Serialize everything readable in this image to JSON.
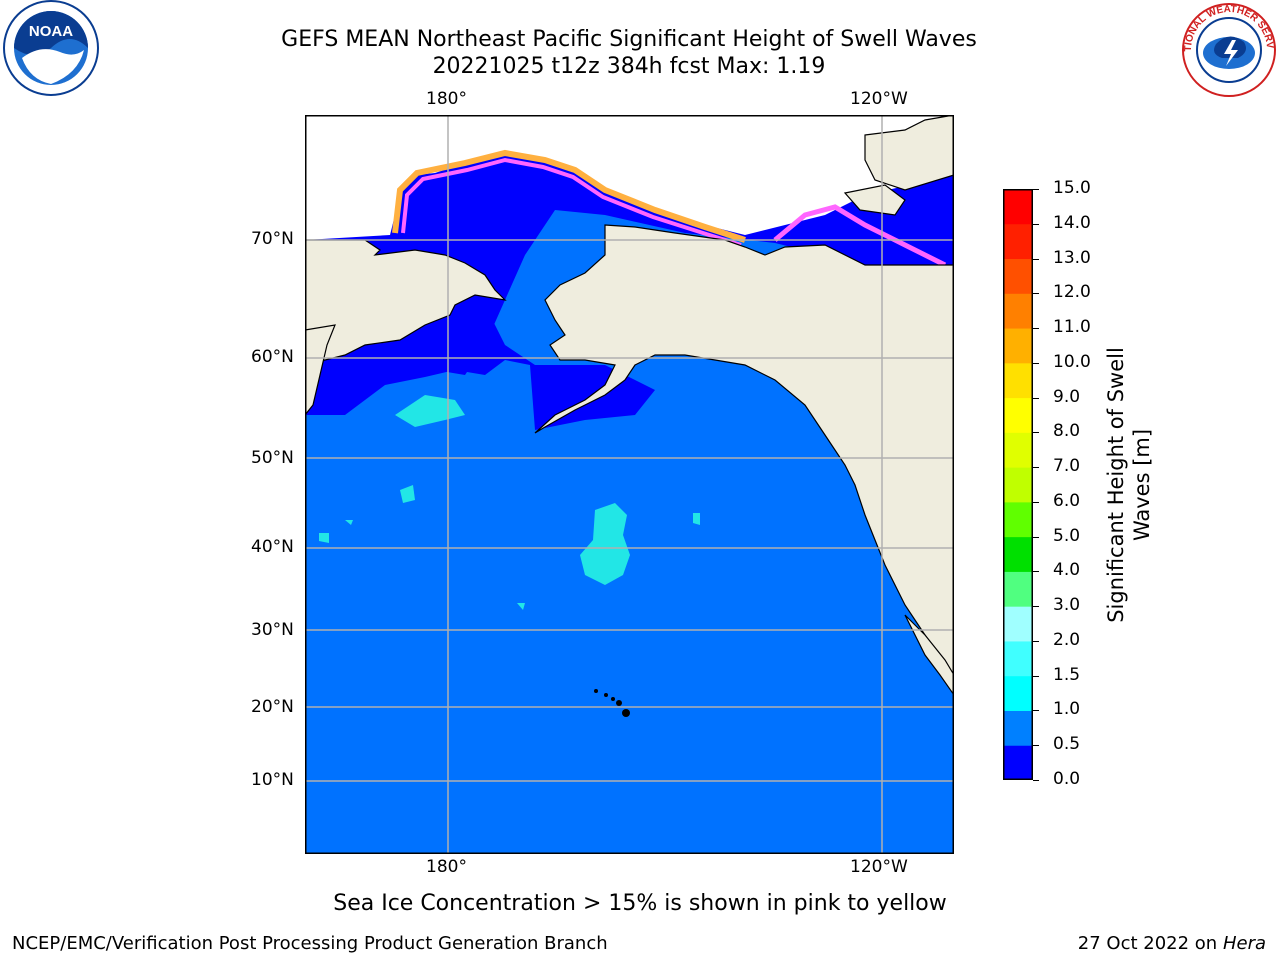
{
  "title": {
    "line1": "GEFS MEAN Northeast Pacific Significant Height of Swell Waves",
    "line2": "20221025 t12z 384h fcst   Max: 1.19"
  },
  "map": {
    "lon_labels_top": [
      "180°",
      "120°W"
    ],
    "lon_labels_bottom": [
      "180°",
      "120°W"
    ],
    "lat_labels": [
      "70°N",
      "60°N",
      "50°N",
      "40°N",
      "30°N",
      "20°N",
      "10°N"
    ],
    "colors": {
      "land": "#efedde",
      "sea_low": "#0000fe",
      "sea_main": "#0072ff",
      "sea_cyan": "#22e6e6",
      "ice": [
        "#ff66ff",
        "#ffb040",
        "#ffd000"
      ],
      "grid": "#b0b0b0"
    }
  },
  "colorbar": {
    "label": "Significant Height of Swell Waves [m]",
    "label_lines": [
      "Significant Height of Swell",
      "Waves [m]"
    ],
    "ticks": [
      "15.0",
      "14.0",
      "13.0",
      "12.0",
      "11.0",
      "10.0",
      "9.0",
      "8.0",
      "7.0",
      "6.0",
      "5.0",
      "4.0",
      "3.0",
      "2.0",
      "1.5",
      "1.0",
      "0.5",
      "0.0"
    ],
    "colors_bottom_to_top": [
      "#0000ff",
      "#0080ff",
      "#00ffff",
      "#40ffff",
      "#a0ffff",
      "#50ff80",
      "#00e000",
      "#60ff00",
      "#c0ff00",
      "#e0ff00",
      "#ffff00",
      "#ffe000",
      "#ffb000",
      "#ff8000",
      "#ff5000",
      "#ff2000",
      "#ff0000"
    ]
  },
  "note": "Sea Ice Concentration > 15% is shown in pink to yellow",
  "footer": {
    "left": "NCEP/EMC/Verification Post Processing Product Generation Branch",
    "right_prefix": "27 Oct 2022 on ",
    "right_host": "Hera"
  },
  "logos": {
    "noaa": "NOAA",
    "nws": "NATIONAL WEATHER SERVICE"
  }
}
